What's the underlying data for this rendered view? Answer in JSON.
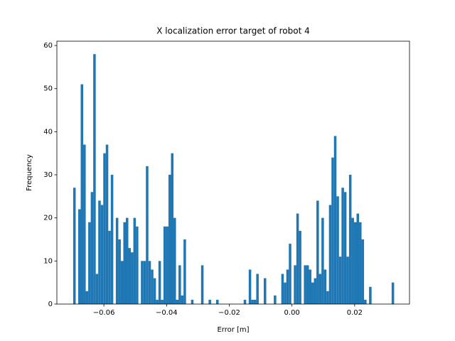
{
  "chart_data": {
    "type": "histogram",
    "title": "X localization error target of robot 4",
    "xlabel": "Error [m]",
    "ylabel": "Frequency",
    "color": "#1f77b4",
    "bins": [
      -0.0698,
      -0.069,
      -0.0682,
      -0.0674,
      -0.0666,
      -0.0658,
      -0.065,
      -0.0642,
      -0.0634,
      -0.0626,
      -0.0618,
      -0.061,
      -0.0602,
      -0.0594,
      -0.0586,
      -0.0578,
      -0.057,
      -0.0562,
      -0.0554,
      -0.0546,
      -0.0538,
      -0.053,
      -0.0522,
      -0.0514,
      -0.0506,
      -0.0498,
      -0.049,
      -0.0482,
      -0.0474,
      -0.0466,
      -0.0458,
      -0.045,
      -0.0442,
      -0.0434,
      -0.0426,
      -0.0418,
      -0.041,
      -0.0402,
      -0.0394,
      -0.0386,
      -0.0378,
      -0.037,
      -0.0362,
      -0.0354,
      -0.0346,
      -0.0338,
      -0.033,
      -0.0322,
      -0.0314,
      -0.0306,
      -0.0298,
      -0.029,
      -0.0282,
      -0.0274,
      -0.0266,
      -0.0258,
      -0.025,
      -0.0242,
      -0.0234,
      -0.0226,
      -0.0218,
      -0.021,
      -0.0202,
      -0.0194,
      -0.0186,
      -0.0178,
      -0.017,
      -0.0162,
      -0.0154,
      -0.0146,
      -0.0138,
      -0.013,
      -0.0122,
      -0.0114,
      -0.0106,
      -0.0098,
      -0.009,
      -0.0082,
      -0.0074,
      -0.0066,
      -0.0058,
      -0.005,
      -0.0042,
      -0.0034,
      -0.0026,
      -0.0018,
      -0.001,
      -0.0002,
      0.0006,
      0.0014,
      0.0022,
      0.003,
      0.0038,
      0.0046,
      0.0054,
      0.0062,
      0.007,
      0.0078,
      0.0086,
      0.0094,
      0.0102,
      0.011,
      0.0118,
      0.0126,
      0.0134,
      0.0142,
      0.015,
      0.0158,
      0.0166,
      0.0174,
      0.0182,
      0.019,
      0.0198,
      0.0206,
      0.0214,
      0.0222,
      0.023,
      0.0238,
      0.0246,
      0.0254,
      0.0262,
      0.027,
      0.0278,
      0.0286,
      0.0294,
      0.0302,
      0.031,
      0.0318,
      0.0326
    ],
    "values": [
      27,
      0,
      22,
      51,
      37,
      3,
      19,
      26,
      58,
      7,
      24,
      23,
      35,
      37,
      17,
      30,
      0,
      20,
      15,
      10,
      19,
      20,
      13,
      12,
      20,
      18,
      0,
      10,
      10,
      32,
      10,
      8,
      6,
      1,
      10,
      1,
      18,
      18,
      30,
      35,
      20,
      1,
      9,
      2,
      15,
      0,
      0,
      1,
      0,
      0,
      0,
      9,
      0,
      0,
      1,
      0,
      0,
      1,
      0,
      0,
      0,
      0,
      0,
      0,
      0,
      0,
      0,
      0,
      1,
      0,
      8,
      1,
      1,
      7,
      0,
      0,
      6,
      0,
      0,
      0,
      2,
      0,
      0,
      7,
      5,
      8,
      14,
      0,
      9,
      21,
      17,
      0,
      9,
      9,
      8,
      5,
      6,
      24,
      7,
      20,
      8,
      3,
      23,
      34,
      39,
      25,
      11,
      27,
      26,
      11,
      30,
      20,
      19,
      21,
      19,
      15,
      1,
      0,
      4,
      0,
      0,
      0,
      0,
      0,
      0,
      0,
      0,
      5
    ],
    "xlim": [
      -0.075,
      0.0375
    ],
    "ylim": [
      0,
      61
    ],
    "xticks": [
      {
        "value": -0.06,
        "label": "−0.06"
      },
      {
        "value": -0.04,
        "label": "−0.04"
      },
      {
        "value": -0.02,
        "label": "−0.02"
      },
      {
        "value": 0,
        "label": "0.00"
      },
      {
        "value": 0.02,
        "label": "0.02"
      }
    ],
    "yticks": [
      0,
      10,
      20,
      30,
      40,
      50,
      60
    ],
    "grid": false
  }
}
